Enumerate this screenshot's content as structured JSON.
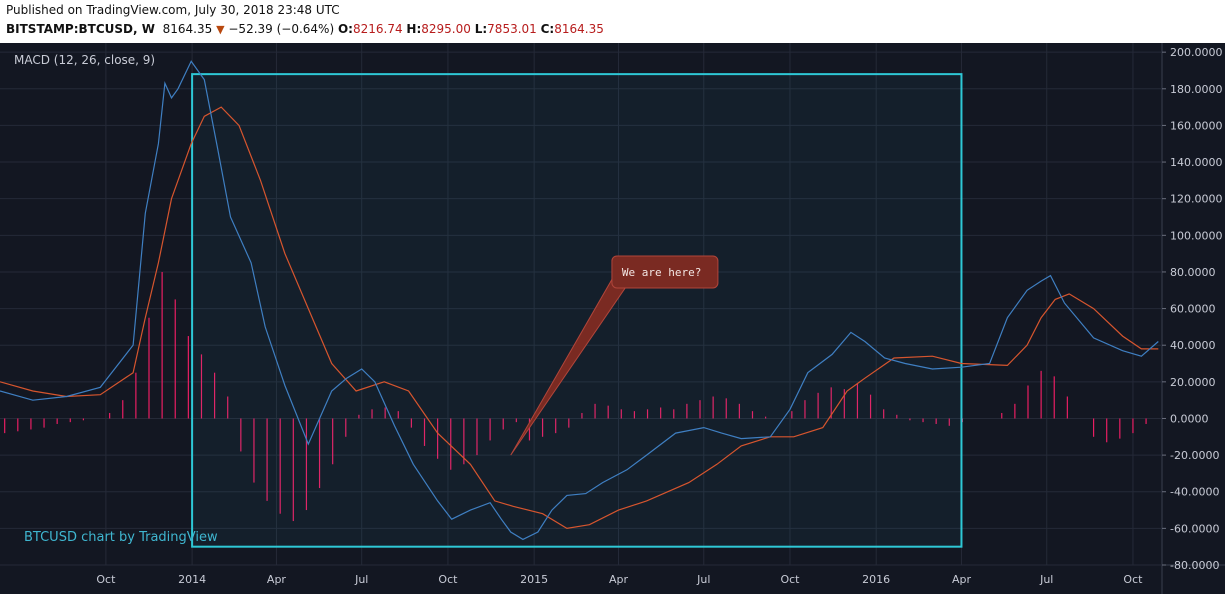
{
  "header": {
    "published": "Published on TradingView.com, July 30, 2018 23:48 UTC",
    "symbol": "BITSTAMP:BTCUSD, W",
    "last": "8164.35",
    "change_arrow": "▼",
    "change": "−52.39 (−0.64%)",
    "o_label": "O:",
    "o_value": "8216.74",
    "h_label": "H:",
    "h_value": "8295.00",
    "l_label": "L:",
    "l_value": "7853.01",
    "c_label": "C:",
    "c_value": "8164.35"
  },
  "indicator_label": "MACD (12, 26, close, 9)",
  "watermark": "BTCUSD chart by TradingView",
  "annotation": {
    "text": "We are here?"
  },
  "colors": {
    "background": "#131722",
    "grid": "#252a38",
    "macd": "#3f7fc2",
    "signal": "#d6552e",
    "histogram": "#e91e63",
    "highlight_box": "#2ec8d6",
    "callout_fill": "#7a2a22",
    "callout_border": "#b0453a"
  },
  "chart_data": {
    "type": "line",
    "title": "",
    "ylim": [
      -80,
      205
    ],
    "y_ticks": [
      "200.0000",
      "180.0000",
      "160.0000",
      "140.0000",
      "120.0000",
      "100.0000",
      "80.0000",
      "60.0000",
      "40.0000",
      "20.0000",
      "0.0000",
      "-20.0000",
      "-40.0000",
      "-60.0000",
      "-80.0000"
    ],
    "y_tick_values": [
      200,
      180,
      160,
      140,
      120,
      100,
      80,
      60,
      40,
      20,
      0,
      -20,
      -40,
      -60,
      -80
    ],
    "x_ticks": [
      "Oct",
      "2014",
      "Apr",
      "Jul",
      "Oct",
      "2015",
      "Apr",
      "Jul",
      "Oct",
      "2016",
      "Apr",
      "Jul",
      "Oct"
    ],
    "x_tick_dates": [
      "2013-10-01",
      "2014-01-01",
      "2014-04-01",
      "2014-07-01",
      "2014-10-01",
      "2015-01-01",
      "2015-04-01",
      "2015-07-01",
      "2015-10-01",
      "2016-01-01",
      "2016-04-01",
      "2016-07-01",
      "2016-10-01"
    ],
    "x_range": [
      "2013-06-10",
      "2016-11-01"
    ],
    "highlight": {
      "x_start": "2014-01-01",
      "x_end": "2016-04-01",
      "y_top": 188,
      "y_bottom": -70
    },
    "callout_anchor": {
      "x": "2014-12-07",
      "y": -20
    },
    "callout_position": {
      "x": "2015-03-25",
      "y": 80
    },
    "series": [
      {
        "role": "macd",
        "x": [
          "2013-06-10",
          "2013-07-15",
          "2013-08-20",
          "2013-09-25",
          "2013-10-30",
          "2013-11-12",
          "2013-11-26",
          "2013-12-03",
          "2013-12-10",
          "2013-12-17",
          "2013-12-31",
          "2014-01-14",
          "2014-01-28",
          "2014-02-11",
          "2014-03-05",
          "2014-03-20",
          "2014-04-10",
          "2014-05-05",
          "2014-05-30",
          "2014-06-15",
          "2014-07-01",
          "2014-07-15",
          "2014-08-05",
          "2014-08-25",
          "2014-09-20",
          "2014-10-05",
          "2014-10-25",
          "2014-11-15",
          "2014-11-27",
          "2014-12-07",
          "2014-12-20",
          "2015-01-05",
          "2015-01-20",
          "2015-02-05",
          "2015-02-25",
          "2015-03-15",
          "2015-04-10",
          "2015-05-01",
          "2015-06-01",
          "2015-07-01",
          "2015-07-20",
          "2015-08-10",
          "2015-09-10",
          "2015-10-01",
          "2015-10-20",
          "2015-11-15",
          "2015-12-05",
          "2015-12-20",
          "2016-01-10",
          "2016-02-01",
          "2016-03-01",
          "2016-04-01",
          "2016-05-01",
          "2016-05-20",
          "2016-06-10",
          "2016-06-25",
          "2016-07-05",
          "2016-07-20",
          "2016-08-20",
          "2016-09-20",
          "2016-10-10",
          "2016-10-28"
        ],
        "values": [
          15,
          10,
          12,
          17,
          40,
          112,
          150,
          183,
          175,
          180,
          195,
          185,
          148,
          110,
          85,
          50,
          18,
          -14,
          15,
          22,
          27,
          20,
          -4,
          -25,
          -45,
          -55,
          -50,
          -46,
          -55,
          -62,
          -66,
          -62,
          -50,
          -42,
          -41,
          -35,
          -28,
          -20,
          -8,
          -5,
          -8,
          -11,
          -10,
          5,
          25,
          35,
          47,
          42,
          33,
          30,
          27,
          28,
          30,
          55,
          70,
          75,
          78,
          63,
          44,
          37,
          34,
          42
        ]
      },
      {
        "role": "signal",
        "x": [
          "2013-06-10",
          "2013-07-15",
          "2013-08-20",
          "2013-09-25",
          "2013-10-30",
          "2013-11-12",
          "2013-11-26",
          "2013-12-10",
          "2013-12-31",
          "2014-01-14",
          "2014-02-01",
          "2014-02-20",
          "2014-03-15",
          "2014-04-10",
          "2014-05-05",
          "2014-05-30",
          "2014-06-25",
          "2014-07-25",
          "2014-08-20",
          "2014-09-20",
          "2014-10-25",
          "2014-11-20",
          "2014-12-10",
          "2015-01-10",
          "2015-02-05",
          "2015-03-01",
          "2015-04-01",
          "2015-05-01",
          "2015-06-15",
          "2015-07-15",
          "2015-08-10",
          "2015-09-10",
          "2015-10-05",
          "2015-11-05",
          "2015-12-01",
          "2015-12-20",
          "2016-01-20",
          "2016-03-01",
          "2016-04-01",
          "2016-05-20",
          "2016-06-10",
          "2016-06-25",
          "2016-07-10",
          "2016-07-25",
          "2016-08-20",
          "2016-09-20",
          "2016-10-10",
          "2016-10-28"
        ],
        "values": [
          20,
          15,
          12,
          13,
          25,
          55,
          85,
          120,
          150,
          165,
          170,
          160,
          130,
          90,
          60,
          30,
          15,
          20,
          15,
          -8,
          -25,
          -45,
          -48,
          -52,
          -60,
          -58,
          -50,
          -45,
          -35,
          -25,
          -15,
          -10,
          -10,
          -5,
          15,
          22,
          33,
          34,
          30,
          29,
          40,
          55,
          65,
          68,
          60,
          45,
          38,
          38
        ]
      },
      {
        "role": "histogram",
        "x": [
          "2013-06-15",
          "2013-06-29",
          "2013-07-13",
          "2013-07-27",
          "2013-08-10",
          "2013-08-24",
          "2013-09-07",
          "2013-09-21",
          "2013-10-05",
          "2013-10-19",
          "2013-11-02",
          "2013-11-16",
          "2013-11-30",
          "2013-12-14",
          "2013-12-28",
          "2014-01-11",
          "2014-01-25",
          "2014-02-08",
          "2014-02-22",
          "2014-03-08",
          "2014-03-22",
          "2014-04-05",
          "2014-04-19",
          "2014-05-03",
          "2014-05-17",
          "2014-05-31",
          "2014-06-14",
          "2014-06-28",
          "2014-07-12",
          "2014-07-26",
          "2014-08-09",
          "2014-08-23",
          "2014-09-06",
          "2014-09-20",
          "2014-10-04",
          "2014-10-18",
          "2014-11-01",
          "2014-11-15",
          "2014-11-29",
          "2014-12-13",
          "2014-12-27",
          "2015-01-10",
          "2015-01-24",
          "2015-02-07",
          "2015-02-21",
          "2015-03-07",
          "2015-03-21",
          "2015-04-04",
          "2015-04-18",
          "2015-05-02",
          "2015-05-16",
          "2015-05-30",
          "2015-06-13",
          "2015-06-27",
          "2015-07-11",
          "2015-07-25",
          "2015-08-08",
          "2015-08-22",
          "2015-09-05",
          "2015-09-19",
          "2015-10-03",
          "2015-10-17",
          "2015-10-31",
          "2015-11-14",
          "2015-11-28",
          "2015-12-12",
          "2015-12-26",
          "2016-01-09",
          "2016-01-23",
          "2016-02-06",
          "2016-02-20",
          "2016-03-05",
          "2016-03-19",
          "2016-04-02",
          "2016-04-16",
          "2016-04-30",
          "2016-05-14",
          "2016-05-28",
          "2016-06-11",
          "2016-06-25",
          "2016-07-09",
          "2016-07-23",
          "2016-08-06",
          "2016-08-20",
          "2016-09-03",
          "2016-09-17",
          "2016-10-01",
          "2016-10-15",
          "2016-10-29"
        ],
        "values": [
          -8,
          -7,
          -6,
          -5,
          -3,
          -2,
          -1,
          0,
          3,
          10,
          25,
          55,
          80,
          65,
          45,
          35,
          25,
          12,
          -18,
          -35,
          -45,
          -52,
          -56,
          -50,
          -38,
          -25,
          -10,
          2,
          5,
          6,
          4,
          -5,
          -15,
          -22,
          -28,
          -25,
          -20,
          -12,
          -6,
          -2,
          -12,
          -10,
          -8,
          -5,
          3,
          8,
          7,
          5,
          4,
          5,
          6,
          5,
          8,
          10,
          12,
          11,
          8,
          4,
          1,
          0,
          4,
          10,
          14,
          17,
          16,
          19,
          13,
          5,
          2,
          -1,
          -2,
          -3,
          -4,
          -2,
          0,
          0,
          3,
          8,
          18,
          26,
          23,
          12,
          0,
          -10,
          -13,
          -11,
          -8,
          -3,
          0
        ]
      }
    ]
  }
}
